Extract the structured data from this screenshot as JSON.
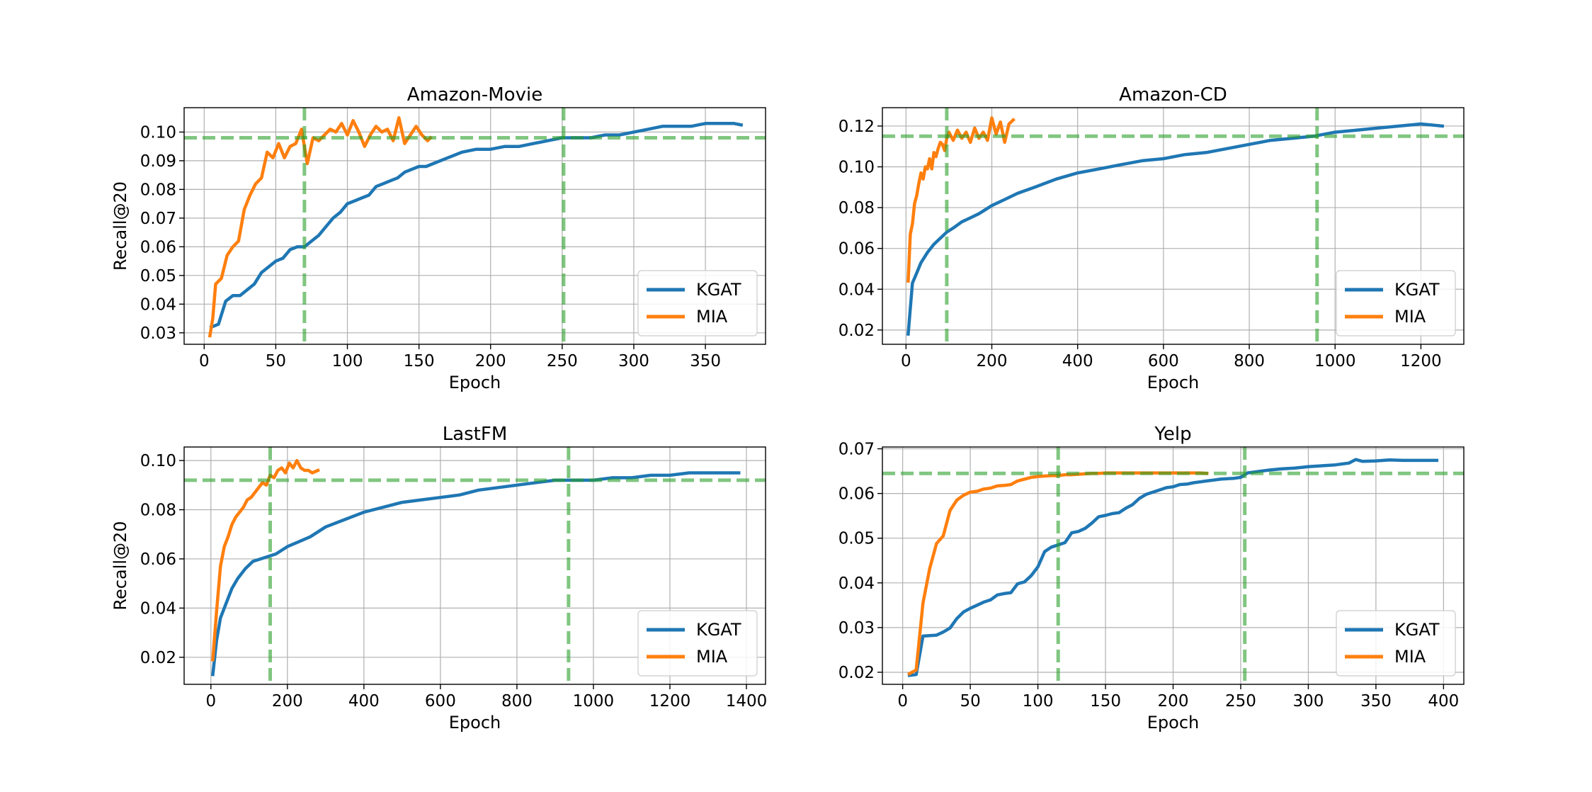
{
  "chart_data": [
    {
      "type": "line",
      "title": "Amazon-Movie",
      "xlabel": "Epoch",
      "ylabel": "Recall@20",
      "xlim": [
        -14,
        392
      ],
      "ylim": [
        0.026,
        0.1085
      ],
      "xticks": [
        0,
        50,
        100,
        150,
        200,
        250,
        300,
        350
      ],
      "xtick_labels": [
        "0",
        "50",
        "100",
        "150",
        "200",
        "250",
        "300",
        "350"
      ],
      "yticks": [
        0.03,
        0.04,
        0.05,
        0.06,
        0.07,
        0.08,
        0.09,
        0.1
      ],
      "ytick_labels": [
        "0.03",
        "0.04",
        "0.05",
        "0.06",
        "0.07",
        "0.08",
        "0.09",
        "0.10"
      ],
      "grid": true,
      "legend_position": "lower-right",
      "series": [
        {
          "name": "KGAT",
          "color": "#1f77b4",
          "x": [
            5,
            10,
            15,
            20,
            25,
            30,
            35,
            40,
            45,
            50,
            55,
            60,
            65,
            70,
            75,
            80,
            85,
            90,
            95,
            100,
            105,
            110,
            115,
            120,
            125,
            130,
            135,
            140,
            145,
            150,
            155,
            160,
            170,
            180,
            190,
            200,
            210,
            220,
            230,
            240,
            250,
            260,
            270,
            280,
            290,
            300,
            310,
            320,
            330,
            340,
            350,
            360,
            370,
            375
          ],
          "y": [
            0.032,
            0.033,
            0.041,
            0.043,
            0.043,
            0.045,
            0.047,
            0.051,
            0.053,
            0.055,
            0.056,
            0.059,
            0.06,
            0.06,
            0.062,
            0.064,
            0.067,
            0.07,
            0.072,
            0.075,
            0.076,
            0.077,
            0.078,
            0.081,
            0.082,
            0.083,
            0.084,
            0.086,
            0.087,
            0.088,
            0.088,
            0.089,
            0.091,
            0.093,
            0.094,
            0.094,
            0.095,
            0.095,
            0.096,
            0.097,
            0.098,
            0.098,
            0.098,
            0.099,
            0.099,
            0.1,
            0.101,
            0.102,
            0.102,
            0.102,
            0.103,
            0.103,
            0.103,
            0.1025
          ]
        },
        {
          "name": "MIA",
          "color": "#ff7f0e",
          "x": [
            4,
            6,
            8,
            12,
            16,
            20,
            24,
            28,
            32,
            36,
            40,
            44,
            48,
            52,
            56,
            60,
            64,
            68,
            72,
            76,
            80,
            84,
            88,
            92,
            96,
            100,
            104,
            108,
            112,
            116,
            120,
            124,
            128,
            132,
            136,
            140,
            144,
            148,
            152,
            156,
            158
          ],
          "y": [
            0.029,
            0.035,
            0.047,
            0.049,
            0.057,
            0.06,
            0.062,
            0.073,
            0.078,
            0.082,
            0.084,
            0.093,
            0.091,
            0.096,
            0.091,
            0.095,
            0.096,
            0.101,
            0.089,
            0.098,
            0.097,
            0.099,
            0.101,
            0.1,
            0.103,
            0.099,
            0.104,
            0.1,
            0.095,
            0.099,
            0.102,
            0.1,
            0.101,
            0.097,
            0.105,
            0.096,
            0.099,
            0.102,
            0.099,
            0.097,
            0.098
          ]
        }
      ],
      "reference_lines": {
        "color": "#2ca02c",
        "hlines": [
          0.098
        ],
        "vlines": [
          70,
          251
        ]
      }
    },
    {
      "type": "line",
      "title": "Amazon-CD",
      "xlabel": "Epoch",
      "ylabel": "",
      "xlim": [
        -55,
        1300
      ],
      "ylim": [
        0.013,
        0.129
      ],
      "xticks": [
        0,
        200,
        400,
        600,
        800,
        1000,
        1200
      ],
      "xtick_labels": [
        "0",
        "200",
        "400",
        "600",
        "800",
        "1000",
        "1200"
      ],
      "yticks": [
        0.02,
        0.04,
        0.06,
        0.08,
        0.1,
        0.12
      ],
      "ytick_labels": [
        "0.02",
        "0.04",
        "0.06",
        "0.08",
        "0.10",
        "0.12"
      ],
      "grid": true,
      "legend_position": "lower-right",
      "series": [
        {
          "name": "KGAT",
          "color": "#1f77b4",
          "x": [
            5,
            15,
            25,
            35,
            50,
            65,
            80,
            95,
            110,
            130,
            150,
            170,
            200,
            230,
            260,
            300,
            350,
            400,
            450,
            500,
            550,
            600,
            650,
            700,
            750,
            800,
            850,
            900,
            950,
            1000,
            1050,
            1100,
            1150,
            1200,
            1250
          ],
          "y": [
            0.018,
            0.043,
            0.048,
            0.053,
            0.058,
            0.062,
            0.065,
            0.068,
            0.07,
            0.073,
            0.075,
            0.077,
            0.081,
            0.084,
            0.087,
            0.09,
            0.094,
            0.097,
            0.099,
            0.101,
            0.103,
            0.104,
            0.106,
            0.107,
            0.109,
            0.111,
            0.113,
            0.114,
            0.115,
            0.117,
            0.118,
            0.119,
            0.12,
            0.121,
            0.12
          ]
        },
        {
          "name": "MIA",
          "color": "#ff7f0e",
          "x": [
            5,
            10,
            15,
            20,
            25,
            30,
            35,
            40,
            45,
            50,
            55,
            60,
            65,
            70,
            75,
            80,
            85,
            90,
            95,
            100,
            110,
            120,
            130,
            140,
            150,
            160,
            170,
            180,
            190,
            200,
            210,
            220,
            230,
            240,
            250
          ],
          "y": [
            0.044,
            0.067,
            0.072,
            0.082,
            0.086,
            0.092,
            0.097,
            0.094,
            0.1,
            0.099,
            0.104,
            0.099,
            0.107,
            0.105,
            0.109,
            0.112,
            0.111,
            0.108,
            0.114,
            0.117,
            0.113,
            0.118,
            0.114,
            0.117,
            0.112,
            0.119,
            0.114,
            0.117,
            0.113,
            0.124,
            0.116,
            0.122,
            0.112,
            0.121,
            0.123
          ]
        }
      ],
      "reference_lines": {
        "color": "#2ca02c",
        "hlines": [
          0.115
        ],
        "vlines": [
          95,
          958
        ]
      }
    },
    {
      "type": "line",
      "title": "LastFM",
      "xlabel": "Epoch",
      "ylabel": "Recall@20",
      "xlim": [
        -70,
        1450
      ],
      "ylim": [
        0.009,
        0.1055
      ],
      "xticks": [
        0,
        200,
        400,
        600,
        800,
        1000,
        1200,
        1400
      ],
      "xtick_labels": [
        "0",
        "200",
        "400",
        "600",
        "800",
        "1000",
        "1200",
        "1400"
      ],
      "yticks": [
        0.02,
        0.04,
        0.06,
        0.08,
        0.1
      ],
      "ytick_labels": [
        "0.02",
        "0.04",
        "0.06",
        "0.08",
        "0.10"
      ],
      "grid": true,
      "legend_position": "lower-right",
      "series": [
        {
          "name": "KGAT",
          "color": "#1f77b4",
          "x": [
            5,
            15,
            25,
            40,
            55,
            70,
            90,
            110,
            130,
            150,
            170,
            200,
            230,
            260,
            300,
            350,
            400,
            450,
            500,
            550,
            600,
            650,
            700,
            750,
            800,
            850,
            900,
            950,
            1000,
            1050,
            1100,
            1150,
            1200,
            1250,
            1300,
            1350,
            1380
          ],
          "y": [
            0.013,
            0.027,
            0.036,
            0.042,
            0.048,
            0.052,
            0.056,
            0.059,
            0.06,
            0.061,
            0.062,
            0.065,
            0.067,
            0.069,
            0.073,
            0.076,
            0.079,
            0.081,
            0.083,
            0.084,
            0.085,
            0.086,
            0.088,
            0.089,
            0.09,
            0.091,
            0.092,
            0.092,
            0.092,
            0.093,
            0.093,
            0.094,
            0.094,
            0.095,
            0.095,
            0.095,
            0.095
          ]
        },
        {
          "name": "MIA",
          "color": "#ff7f0e",
          "x": [
            5,
            15,
            25,
            35,
            45,
            55,
            65,
            75,
            85,
            95,
            105,
            115,
            125,
            135,
            145,
            155,
            165,
            175,
            185,
            195,
            205,
            215,
            225,
            235,
            245,
            255,
            265,
            280
          ],
          "y": [
            0.019,
            0.039,
            0.057,
            0.065,
            0.069,
            0.074,
            0.077,
            0.079,
            0.081,
            0.084,
            0.085,
            0.087,
            0.089,
            0.091,
            0.09,
            0.094,
            0.093,
            0.096,
            0.097,
            0.095,
            0.099,
            0.097,
            0.1,
            0.097,
            0.096,
            0.096,
            0.095,
            0.096
          ]
        }
      ],
      "reference_lines": {
        "color": "#2ca02c",
        "hlines": [
          0.092
        ],
        "vlines": [
          155,
          935
        ]
      }
    },
    {
      "type": "line",
      "title": "Yelp",
      "xlabel": "Epoch",
      "ylabel": "",
      "xlim": [
        -15,
        415
      ],
      "ylim": [
        0.0173,
        0.0704
      ],
      "xticks": [
        0,
        50,
        100,
        150,
        200,
        250,
        300,
        350,
        400
      ],
      "xtick_labels": [
        "0",
        "50",
        "100",
        "150",
        "200",
        "250",
        "300",
        "350",
        "400"
      ],
      "yticks": [
        0.02,
        0.03,
        0.04,
        0.05,
        0.06,
        0.07
      ],
      "ytick_labels": [
        "0.02",
        "0.03",
        "0.04",
        "0.05",
        "0.06",
        "0.07"
      ],
      "grid": true,
      "legend_position": "lower-right",
      "series": [
        {
          "name": "KGAT",
          "color": "#1f77b4",
          "x": [
            5,
            10,
            15,
            20,
            25,
            30,
            35,
            40,
            45,
            50,
            55,
            60,
            65,
            70,
            75,
            80,
            85,
            90,
            95,
            100,
            105,
            110,
            115,
            120,
            125,
            130,
            135,
            140,
            145,
            150,
            155,
            160,
            165,
            170,
            175,
            180,
            185,
            190,
            195,
            200,
            205,
            210,
            215,
            220,
            225,
            230,
            235,
            240,
            245,
            250,
            255,
            260,
            270,
            280,
            290,
            300,
            310,
            320,
            330,
            335,
            340,
            350,
            360,
            370,
            380,
            390,
            395
          ],
          "y": [
            0.0193,
            0.0195,
            0.0281,
            0.0282,
            0.0283,
            0.029,
            0.0299,
            0.032,
            0.0335,
            0.0343,
            0.035,
            0.0357,
            0.0362,
            0.0373,
            0.0376,
            0.0378,
            0.0398,
            0.0402,
            0.0416,
            0.0436,
            0.047,
            0.048,
            0.0485,
            0.049,
            0.0512,
            0.0515,
            0.0522,
            0.0534,
            0.0548,
            0.0551,
            0.0555,
            0.0557,
            0.0567,
            0.0575,
            0.0589,
            0.0598,
            0.0603,
            0.0608,
            0.0613,
            0.0615,
            0.062,
            0.0621,
            0.0624,
            0.0626,
            0.0628,
            0.063,
            0.0632,
            0.0633,
            0.0634,
            0.0636,
            0.0646,
            0.0648,
            0.0652,
            0.0655,
            0.0657,
            0.066,
            0.0662,
            0.0664,
            0.0668,
            0.0676,
            0.0672,
            0.0673,
            0.0675,
            0.0674,
            0.0674,
            0.0674,
            0.0674
          ]
        },
        {
          "name": "MIA",
          "color": "#ff7f0e",
          "x": [
            5,
            10,
            15,
            20,
            25,
            30,
            35,
            40,
            45,
            50,
            55,
            60,
            65,
            70,
            75,
            80,
            85,
            90,
            95,
            100,
            105,
            110,
            115,
            120,
            125,
            130,
            135,
            140,
            145,
            150,
            155,
            160,
            165,
            170,
            175,
            180,
            185,
            190,
            195,
            200,
            205,
            210,
            215,
            220,
            225
          ],
          "y": [
            0.0197,
            0.0205,
            0.0355,
            0.0432,
            0.0488,
            0.0505,
            0.0562,
            0.0585,
            0.0596,
            0.0603,
            0.0605,
            0.061,
            0.0612,
            0.0617,
            0.0618,
            0.062,
            0.0628,
            0.0632,
            0.0636,
            0.0638,
            0.0639,
            0.064,
            0.064,
            0.0642,
            0.0642,
            0.0643,
            0.0644,
            0.0645,
            0.0645,
            0.0646,
            0.0646,
            0.0646,
            0.0646,
            0.0646,
            0.0646,
            0.0646,
            0.0646,
            0.0646,
            0.0646,
            0.0646,
            0.0646,
            0.0646,
            0.0646,
            0.0646,
            0.0645
          ]
        }
      ],
      "reference_lines": {
        "color": "#2ca02c",
        "hlines": [
          0.0645
        ],
        "vlines": [
          115,
          253
        ]
      }
    }
  ]
}
